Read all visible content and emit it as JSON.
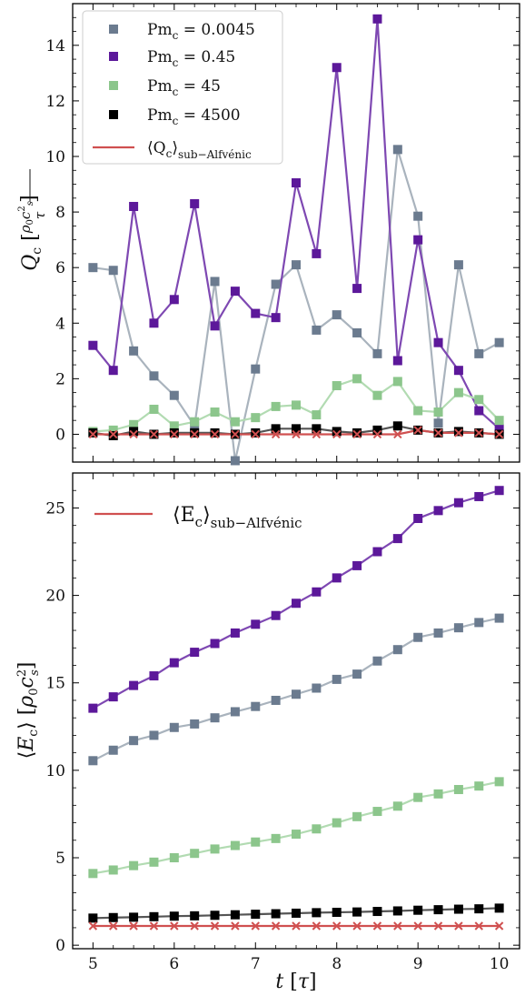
{
  "chart_data": [
    {
      "type": "line",
      "ylabel": "Q_c [ρ0 c_s² / τ]",
      "xlim": [
        4.75,
        10.25
      ],
      "ylim": [
        -1.0,
        15.5
      ],
      "xticks": [
        5,
        6,
        7,
        8,
        9,
        10
      ],
      "yticks": [
        0,
        2,
        4,
        6,
        8,
        10,
        12,
        14
      ],
      "grid": false,
      "legend_position": "top-left",
      "x": [
        5.0,
        5.25,
        5.5,
        5.75,
        6.0,
        6.25,
        6.5,
        6.75,
        7.0,
        7.25,
        7.5,
        7.75,
        8.0,
        8.25,
        8.5,
        8.75,
        9.0,
        9.25,
        9.5,
        9.75,
        10.0
      ],
      "series": [
        {
          "name": "Pm_c = 0.0045",
          "label_main": "Pm",
          "label_sub": "c",
          "label_rest": " = 0.0045",
          "color": "#6b7b8f",
          "line_color": "#a9b3bd",
          "marker": "square",
          "values": [
            6.0,
            5.9,
            3.0,
            2.1,
            1.4,
            0.3,
            5.5,
            -0.95,
            2.35,
            5.4,
            6.1,
            3.75,
            4.3,
            3.65,
            2.9,
            10.25,
            7.85,
            0.4,
            6.1,
            2.9,
            3.3
          ]
        },
        {
          "name": "Pm_c = 0.45",
          "label_main": "Pm",
          "label_sub": "c",
          "label_rest": " = 0.45",
          "color": "#5c189a",
          "line_color": "#7e48b2",
          "marker": "square",
          "values": [
            3.2,
            2.3,
            8.2,
            4.0,
            4.85,
            8.3,
            3.9,
            5.15,
            4.35,
            4.2,
            9.05,
            6.5,
            13.2,
            5.25,
            14.95,
            2.65,
            7.0,
            3.3,
            2.3,
            0.85,
            0.2
          ]
        },
        {
          "name": "Pm_c = 45",
          "label_main": "Pm",
          "label_sub": "c",
          "label_rest": " = 45",
          "color": "#8cc68c",
          "line_color": "#b2dbb2",
          "marker": "square",
          "values": [
            0.1,
            0.15,
            0.35,
            0.9,
            0.3,
            0.45,
            0.8,
            0.45,
            0.6,
            1.0,
            1.05,
            0.7,
            1.75,
            2.0,
            1.4,
            1.9,
            0.85,
            0.8,
            1.5,
            1.25,
            0.5
          ]
        },
        {
          "name": "Pm_c = 4500",
          "label_main": "Pm",
          "label_sub": "c",
          "label_rest": " = 4500",
          "color": "#000000",
          "line_color": "#555555",
          "marker": "square",
          "values": [
            0.05,
            -0.05,
            0.1,
            0.0,
            0.05,
            0.05,
            0.05,
            0.0,
            0.05,
            0.2,
            0.2,
            0.2,
            0.1,
            0.05,
            0.15,
            0.3,
            0.15,
            0.05,
            0.1,
            0.05,
            0.0
          ]
        },
        {
          "name": "⟨Q_c⟩ sub−Alfvénic",
          "label_main": "⟨Q",
          "label_sub": "c",
          "label_rest": "⟩",
          "label_tail": "sub−Alfvénic",
          "color": "#d05050",
          "line_color": "#d05050",
          "marker": "x",
          "values": [
            0.0,
            0.0,
            0.0,
            0.0,
            0.0,
            0.0,
            0.0,
            0.0,
            0.0,
            0.0,
            0.0,
            0.0,
            0.0,
            0.0,
            0.0,
            0.0,
            0.15,
            0.05,
            0.05,
            0.05,
            0.0
          ]
        }
      ]
    },
    {
      "type": "line",
      "xlabel": "t [τ]",
      "ylabel": "⟨E_c⟩ [ρ0 c_s²]",
      "xlim": [
        4.75,
        10.25
      ],
      "ylim": [
        -0.2,
        27
      ],
      "xticks": [
        5,
        6,
        7,
        8,
        9,
        10
      ],
      "yticks": [
        0,
        5,
        10,
        15,
        20,
        25
      ],
      "grid": false,
      "legend_position": "top-left",
      "x": [
        5.0,
        5.25,
        5.5,
        5.75,
        6.0,
        6.25,
        6.5,
        6.75,
        7.0,
        7.25,
        7.5,
        7.75,
        8.0,
        8.25,
        8.5,
        8.75,
        9.0,
        9.25,
        9.5,
        9.75,
        10.0
      ],
      "series": [
        {
          "name": "Pm_c = 0.0045",
          "color": "#6b7b8f",
          "line_color": "#a9b3bd",
          "marker": "square",
          "values": [
            10.55,
            11.15,
            11.7,
            12.0,
            12.45,
            12.65,
            13.0,
            13.35,
            13.65,
            14.0,
            14.35,
            14.7,
            15.2,
            15.5,
            16.25,
            16.9,
            17.6,
            17.85,
            18.15,
            18.45,
            18.7
          ]
        },
        {
          "name": "Pm_c = 0.45",
          "color": "#5c189a",
          "line_color": "#7e48b2",
          "marker": "square",
          "values": [
            13.55,
            14.2,
            14.85,
            15.4,
            16.15,
            16.75,
            17.25,
            17.85,
            18.35,
            18.85,
            19.55,
            20.2,
            21.0,
            21.7,
            22.5,
            23.25,
            24.4,
            24.85,
            25.3,
            25.65,
            26.0
          ]
        },
        {
          "name": "Pm_c = 45",
          "color": "#8cc68c",
          "line_color": "#b2dbb2",
          "marker": "square",
          "values": [
            4.1,
            4.3,
            4.55,
            4.75,
            5.0,
            5.25,
            5.5,
            5.7,
            5.9,
            6.1,
            6.35,
            6.65,
            7.0,
            7.35,
            7.65,
            7.95,
            8.45,
            8.65,
            8.9,
            9.1,
            9.35
          ]
        },
        {
          "name": "Pm_c = 4500",
          "color": "#000000",
          "line_color": "#555555",
          "marker": "square",
          "values": [
            1.55,
            1.58,
            1.6,
            1.63,
            1.66,
            1.68,
            1.71,
            1.74,
            1.77,
            1.8,
            1.83,
            1.86,
            1.88,
            1.9,
            1.93,
            1.96,
            2.0,
            2.03,
            2.06,
            2.08,
            2.12
          ]
        },
        {
          "name": "⟨E_c⟩ sub−Alfvénic",
          "label_main": "⟨E",
          "label_sub": "c",
          "label_rest": "⟩",
          "label_tail": "sub−Alfvénic",
          "color": "#d05050",
          "line_color": "#d05050",
          "marker": "x",
          "values": [
            1.1,
            1.1,
            1.1,
            1.1,
            1.1,
            1.1,
            1.1,
            1.1,
            1.1,
            1.1,
            1.1,
            1.1,
            1.1,
            1.1,
            1.1,
            1.1,
            1.1,
            1.1,
            1.1,
            1.1,
            1.1
          ]
        }
      ],
      "legend_series": [
        4
      ]
    }
  ]
}
